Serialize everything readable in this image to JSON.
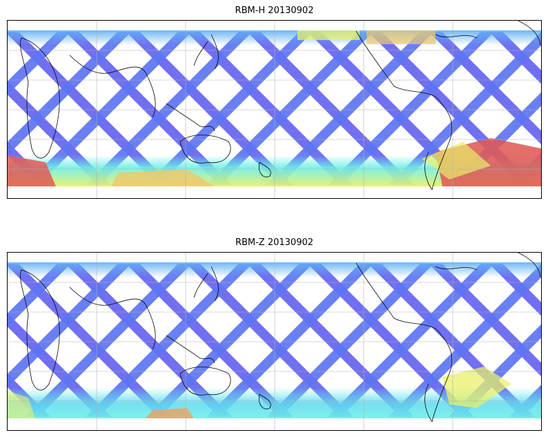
{
  "panels": [
    {
      "title": "RBM-H 20130902",
      "variable": "RBM-H",
      "date": "20130902"
    },
    {
      "title": "RBM-Z 20130902",
      "variable": "RBM-Z",
      "date": "20130902"
    }
  ],
  "map": {
    "projection": "cylindrical",
    "central_longitude": 180,
    "grid": true,
    "coastlines": true,
    "colormap": "jet",
    "swath_pattern": "crossing satellite ground tracks"
  },
  "colors": {
    "low": "#5a5af0",
    "mid_low": "#5fb0f5",
    "mid": "#6ef0e6",
    "mid_high": "#e8f06a",
    "high": "#e05a55"
  }
}
